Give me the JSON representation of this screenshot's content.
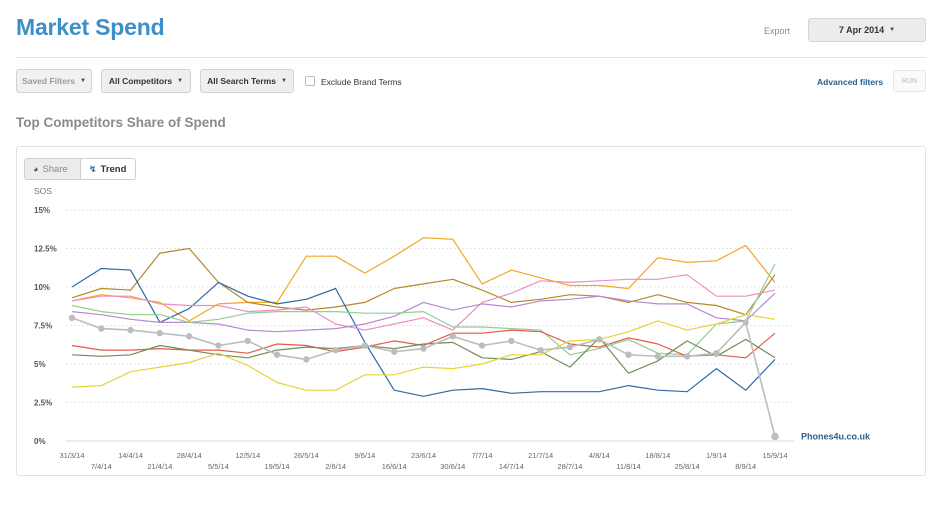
{
  "header": {
    "title": "Market Spend",
    "export_label": "Export",
    "date_value": "7 Apr 2014"
  },
  "filters": {
    "saved_filters": "Saved Filters",
    "competitors": "All Competitors",
    "search_terms": "All Search Terms",
    "exclude_brand": "Exclude Brand Terms",
    "advanced": "Advanced filters",
    "run": "RUN"
  },
  "section": {
    "title": "Top Competitors Share of Spend"
  },
  "toggles": {
    "share": "Share",
    "trend": "Trend",
    "active": "Trend"
  },
  "colors": {
    "accent": "#3d8fc7",
    "link": "#2a5e8c",
    "highlight_series": "#bdbdbd"
  },
  "icons": {
    "share": "pie-chart-icon",
    "trend": "trend-icon",
    "dropdown": "caret-down-icon"
  },
  "chart_data": {
    "type": "line",
    "ylabel": "SOS",
    "ylim": [
      0,
      15
    ],
    "yticks": [
      "0%",
      "2.5%",
      "5%",
      "7.5%",
      "10%",
      "12.5%",
      "15%"
    ],
    "grid": true,
    "x": [
      "31/3/14",
      "7/4/14",
      "14/4/14",
      "21/4/14",
      "28/4/14",
      "5/5/14",
      "12/5/14",
      "19/5/14",
      "26/5/14",
      "2/6/14",
      "9/6/14",
      "16/6/14",
      "23/6/14",
      "30/6/14",
      "7/7/14",
      "14/7/14",
      "21/7/14",
      "28/7/14",
      "4/8/14",
      "11/8/14",
      "18/8/14",
      "25/8/14",
      "1/9/14",
      "8/9/14",
      "15/9/14"
    ],
    "annotation": "Phones4u.co.uk",
    "series": [
      {
        "color": "#f5a623",
        "values": [
          9.1,
          9.5,
          9.3,
          9.0,
          7.8,
          8.9,
          9.0,
          9.0,
          12.0,
          12.0,
          10.9,
          12.0,
          13.2,
          13.1,
          10.2,
          11.1,
          10.6,
          10.1,
          10.1,
          9.9,
          11.9,
          11.6,
          11.7,
          12.7,
          10.3
        ]
      },
      {
        "color": "#b5892a",
        "values": [
          9.3,
          9.9,
          9.8,
          12.2,
          12.5,
          10.3,
          9.0,
          8.7,
          8.5,
          8.7,
          9.0,
          9.9,
          10.2,
          10.5,
          9.8,
          9.0,
          9.2,
          9.5,
          9.4,
          9.0,
          9.5,
          9.0,
          8.8,
          8.2,
          10.8
        ]
      },
      {
        "color": "#2f6aa3",
        "values": [
          10.0,
          11.2,
          11.1,
          7.7,
          8.6,
          10.3,
          9.4,
          8.9,
          9.2,
          9.9,
          6.4,
          3.3,
          2.9,
          3.3,
          3.4,
          3.1,
          3.2,
          3.2,
          3.2,
          3.6,
          3.3,
          3.2,
          4.7,
          3.3,
          5.3
        ]
      },
      {
        "color": "#ea8fc4",
        "values": [
          9.1,
          9.4,
          9.4,
          8.9,
          8.8,
          8.8,
          8.4,
          8.5,
          8.7,
          7.6,
          7.2,
          7.6,
          8.0,
          7.2,
          9.0,
          9.6,
          10.4,
          10.3,
          10.4,
          10.5,
          10.5,
          10.8,
          9.4,
          9.4,
          9.8
        ]
      },
      {
        "color": "#b58ad1",
        "values": [
          8.4,
          8.2,
          7.9,
          7.7,
          7.7,
          7.6,
          7.2,
          7.1,
          7.2,
          7.3,
          7.6,
          8.1,
          9.0,
          8.5,
          8.9,
          8.7,
          9.1,
          9.2,
          9.4,
          9.1,
          8.9,
          8.9,
          8.0,
          7.8,
          9.6
        ]
      },
      {
        "color": "#8fcf8f",
        "values": [
          8.8,
          8.4,
          8.2,
          8.2,
          7.7,
          7.9,
          8.3,
          8.4,
          8.4,
          8.4,
          8.3,
          8.3,
          8.4,
          7.4,
          7.4,
          7.3,
          7.2,
          5.6,
          6.0,
          6.6,
          5.7,
          5.6,
          7.6,
          7.8,
          11.5
        ]
      },
      {
        "color": "#e55a4a",
        "values": [
          6.2,
          5.9,
          5.9,
          6.0,
          5.9,
          5.9,
          5.7,
          6.3,
          6.2,
          5.8,
          6.1,
          6.5,
          6.2,
          7.0,
          7.0,
          7.2,
          7.1,
          6.3,
          6.1,
          6.7,
          6.3,
          5.5,
          5.6,
          5.4,
          7.0
        ]
      },
      {
        "color": "#6f8f5a",
        "values": [
          5.6,
          5.5,
          5.6,
          6.2,
          5.9,
          5.6,
          5.4,
          5.9,
          6.1,
          6.0,
          6.2,
          6.0,
          6.3,
          6.4,
          5.4,
          5.3,
          5.8,
          4.8,
          6.7,
          4.4,
          5.2,
          6.5,
          5.5,
          6.6,
          5.4
        ]
      },
      {
        "color": "#e8d33a",
        "values": [
          3.5,
          3.6,
          4.5,
          4.8,
          5.1,
          5.7,
          4.9,
          3.8,
          3.3,
          3.3,
          4.3,
          4.3,
          4.8,
          4.7,
          5.0,
          5.6,
          5.6,
          6.5,
          6.6,
          7.1,
          7.8,
          7.2,
          7.6,
          8.2,
          7.9
        ]
      },
      {
        "color": "#bdbdbd",
        "name": "Phones4u.co.uk",
        "values": [
          8.0,
          7.3,
          7.2,
          7.0,
          6.8,
          6.2,
          6.5,
          5.6,
          5.3,
          5.9,
          6.2,
          5.8,
          6.0,
          6.8,
          6.2,
          6.5,
          5.9,
          6.1,
          6.6,
          5.6,
          5.5,
          5.5,
          5.7,
          7.7,
          0.3
        ]
      }
    ]
  }
}
